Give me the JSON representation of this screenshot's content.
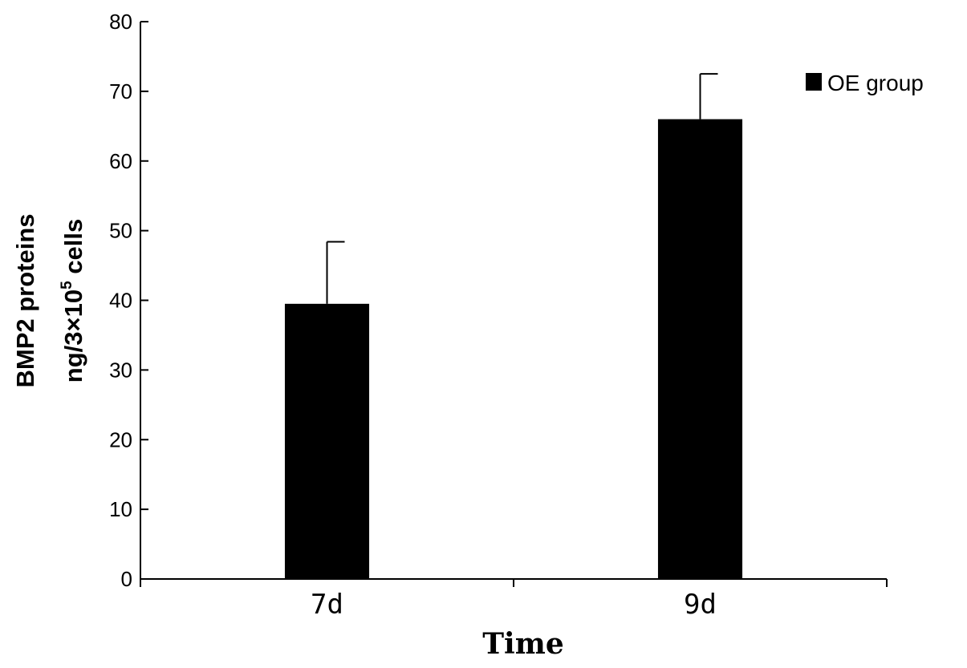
{
  "chart_data": {
    "type": "bar",
    "categories": [
      "7d",
      "9d"
    ],
    "series": [
      {
        "name": "OE group",
        "values": [
          39.5,
          66
        ],
        "error": [
          8.9,
          6.5
        ],
        "color": "#000000"
      }
    ],
    "xlabel": "Time",
    "ylabel_line1": "BMP2 proteins",
    "ylabel_line2": "ng/3×10",
    "ylabel_sup": "5",
    "ylabel_line2_end": " cells",
    "ylim": [
      0,
      80
    ],
    "yticks": [
      0,
      10,
      20,
      30,
      40,
      50,
      60,
      70,
      80
    ],
    "legend_position": "top-right",
    "grid": false
  }
}
